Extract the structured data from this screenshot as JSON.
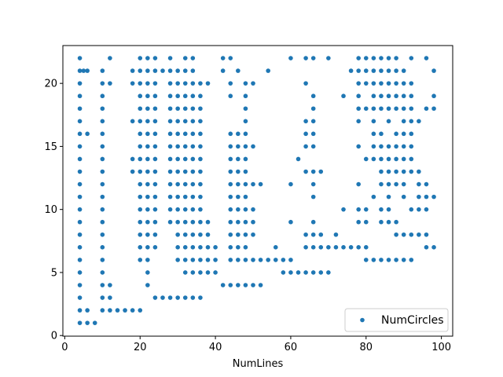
{
  "chart_data": {
    "type": "scatter",
    "title": "",
    "xlabel": "NumLines",
    "ylabel": "",
    "xlim": [
      -0.5,
      103
    ],
    "ylim": [
      -0.05,
      23
    ],
    "xticks": [
      0,
      20,
      40,
      60,
      80,
      100
    ],
    "yticks": [
      0,
      5,
      10,
      15,
      20
    ],
    "grid": false,
    "legend": {
      "position": "lower-right",
      "entries": [
        "NumCircles"
      ]
    },
    "marker_color": "#1f77b4",
    "series": [
      {
        "name": "NumCircles",
        "columns": [
          {
            "x": 4,
            "y": [
              1,
              2,
              3,
              4,
              5,
              6,
              7,
              8,
              9,
              10,
              11,
              12,
              13,
              14,
              15,
              16,
              17,
              18,
              19,
              20,
              21,
              22
            ]
          },
          {
            "x": 5,
            "y": [
              21
            ]
          },
          {
            "x": 6,
            "y": [
              1,
              2,
              16,
              21
            ]
          },
          {
            "x": 8,
            "y": [
              1
            ]
          },
          {
            "x": 10,
            "y": [
              2,
              3,
              4,
              5,
              6,
              7,
              8,
              9,
              10,
              11,
              12,
              13,
              14,
              15,
              16,
              17,
              18,
              19,
              20,
              21
            ]
          },
          {
            "x": 12,
            "y": [
              2,
              3,
              4,
              20,
              22
            ]
          },
          {
            "x": 14,
            "y": [
              2
            ]
          },
          {
            "x": 16,
            "y": [
              2
            ]
          },
          {
            "x": 18,
            "y": [
              2,
              13,
              14,
              17,
              20,
              21
            ]
          },
          {
            "x": 20,
            "y": [
              2,
              6,
              7,
              8,
              9,
              10,
              11,
              12,
              13,
              14,
              15,
              16,
              17,
              18,
              19,
              20,
              21,
              22
            ]
          },
          {
            "x": 22,
            "y": [
              4,
              5,
              6,
              7,
              8,
              9,
              10,
              11,
              12,
              13,
              14,
              15,
              16,
              17,
              18,
              19,
              20,
              21,
              22
            ]
          },
          {
            "x": 24,
            "y": [
              3,
              7,
              8,
              9,
              10,
              11,
              12,
              13,
              14,
              15,
              16,
              17,
              18,
              19,
              20,
              21,
              22
            ]
          },
          {
            "x": 26,
            "y": [
              3,
              21
            ]
          },
          {
            "x": 28,
            "y": [
              3,
              9,
              10,
              11,
              12,
              13,
              14,
              15,
              16,
              17,
              18,
              19,
              20,
              21,
              22
            ]
          },
          {
            "x": 30,
            "y": [
              3,
              6,
              7,
              8,
              9,
              10,
              11,
              12,
              13,
              14,
              15,
              16,
              17,
              18,
              19,
              20,
              21
            ]
          },
          {
            "x": 32,
            "y": [
              3,
              5,
              6,
              7,
              8,
              9,
              10,
              11,
              12,
              13,
              14,
              15,
              16,
              17,
              18,
              19,
              20,
              21,
              22
            ]
          },
          {
            "x": 34,
            "y": [
              3,
              5,
              6,
              7,
              8,
              9,
              10,
              11,
              12,
              13,
              14,
              15,
              16,
              17,
              18,
              19,
              20,
              21,
              22
            ]
          },
          {
            "x": 36,
            "y": [
              3,
              5,
              6,
              7,
              8,
              9,
              10,
              11,
              12,
              13,
              14,
              15,
              16,
              17,
              18,
              19,
              20
            ]
          },
          {
            "x": 38,
            "y": [
              5,
              6,
              7,
              8,
              9,
              20
            ]
          },
          {
            "x": 40,
            "y": [
              5,
              6,
              7
            ]
          },
          {
            "x": 42,
            "y": [
              4,
              21,
              22
            ]
          },
          {
            "x": 44,
            "y": [
              4,
              6,
              7,
              8,
              9,
              10,
              11,
              12,
              13,
              14,
              15,
              16,
              19,
              20,
              22
            ]
          },
          {
            "x": 46,
            "y": [
              4,
              6,
              7,
              8,
              9,
              10,
              11,
              12,
              13,
              14,
              15,
              16,
              21
            ]
          },
          {
            "x": 48,
            "y": [
              4,
              6,
              7,
              8,
              9,
              10,
              11,
              12,
              13,
              14,
              15,
              16,
              17,
              18,
              19,
              20
            ]
          },
          {
            "x": 50,
            "y": [
              4,
              6,
              8,
              9,
              10,
              12,
              15,
              20
            ]
          },
          {
            "x": 52,
            "y": [
              4,
              6,
              12
            ]
          },
          {
            "x": 54,
            "y": [
              6,
              21
            ]
          },
          {
            "x": 56,
            "y": [
              6,
              7
            ]
          },
          {
            "x": 58,
            "y": [
              5,
              6
            ]
          },
          {
            "x": 60,
            "y": [
              5,
              6,
              9,
              12,
              22
            ]
          },
          {
            "x": 62,
            "y": [
              5,
              14
            ]
          },
          {
            "x": 64,
            "y": [
              5,
              7,
              8,
              13,
              15,
              16,
              17,
              20,
              22
            ]
          },
          {
            "x": 66,
            "y": [
              5,
              7,
              8,
              9,
              11,
              12,
              13,
              15,
              16,
              17,
              18,
              19,
              22
            ]
          },
          {
            "x": 68,
            "y": [
              5,
              7,
              8,
              13
            ]
          },
          {
            "x": 70,
            "y": [
              5,
              7,
              22
            ]
          },
          {
            "x": 72,
            "y": [
              7,
              8
            ]
          },
          {
            "x": 74,
            "y": [
              7,
              10,
              19
            ]
          },
          {
            "x": 76,
            "y": [
              7,
              21
            ]
          },
          {
            "x": 78,
            "y": [
              7,
              9,
              10,
              12,
              15,
              17,
              18,
              19,
              20,
              21,
              22
            ]
          },
          {
            "x": 80,
            "y": [
              6,
              7,
              9,
              10,
              14,
              18,
              20,
              21,
              22
            ]
          },
          {
            "x": 82,
            "y": [
              6,
              11,
              14,
              15,
              16,
              17,
              18,
              19,
              20,
              21,
              22
            ]
          },
          {
            "x": 84,
            "y": [
              6,
              9,
              10,
              12,
              13,
              14,
              15,
              16,
              18,
              19,
              20,
              21,
              22
            ]
          },
          {
            "x": 86,
            "y": [
              6,
              9,
              10,
              11,
              12,
              13,
              14,
              15,
              17,
              18,
              19,
              20,
              21,
              22
            ]
          },
          {
            "x": 88,
            "y": [
              6,
              8,
              9,
              12,
              13,
              14,
              15,
              16,
              18,
              19,
              20,
              21,
              22
            ]
          },
          {
            "x": 90,
            "y": [
              6,
              8,
              11,
              12,
              13,
              14,
              15,
              16,
              17,
              18,
              19,
              20,
              21
            ]
          },
          {
            "x": 92,
            "y": [
              6,
              8,
              10,
              13,
              14,
              15,
              16,
              17,
              18,
              19,
              20,
              22
            ]
          },
          {
            "x": 94,
            "y": [
              8,
              10,
              11,
              12,
              13,
              17
            ]
          },
          {
            "x": 96,
            "y": [
              7,
              8,
              10,
              11,
              12,
              18,
              22
            ]
          },
          {
            "x": 98,
            "y": [
              7,
              11,
              18,
              19,
              21
            ]
          }
        ]
      }
    ]
  }
}
